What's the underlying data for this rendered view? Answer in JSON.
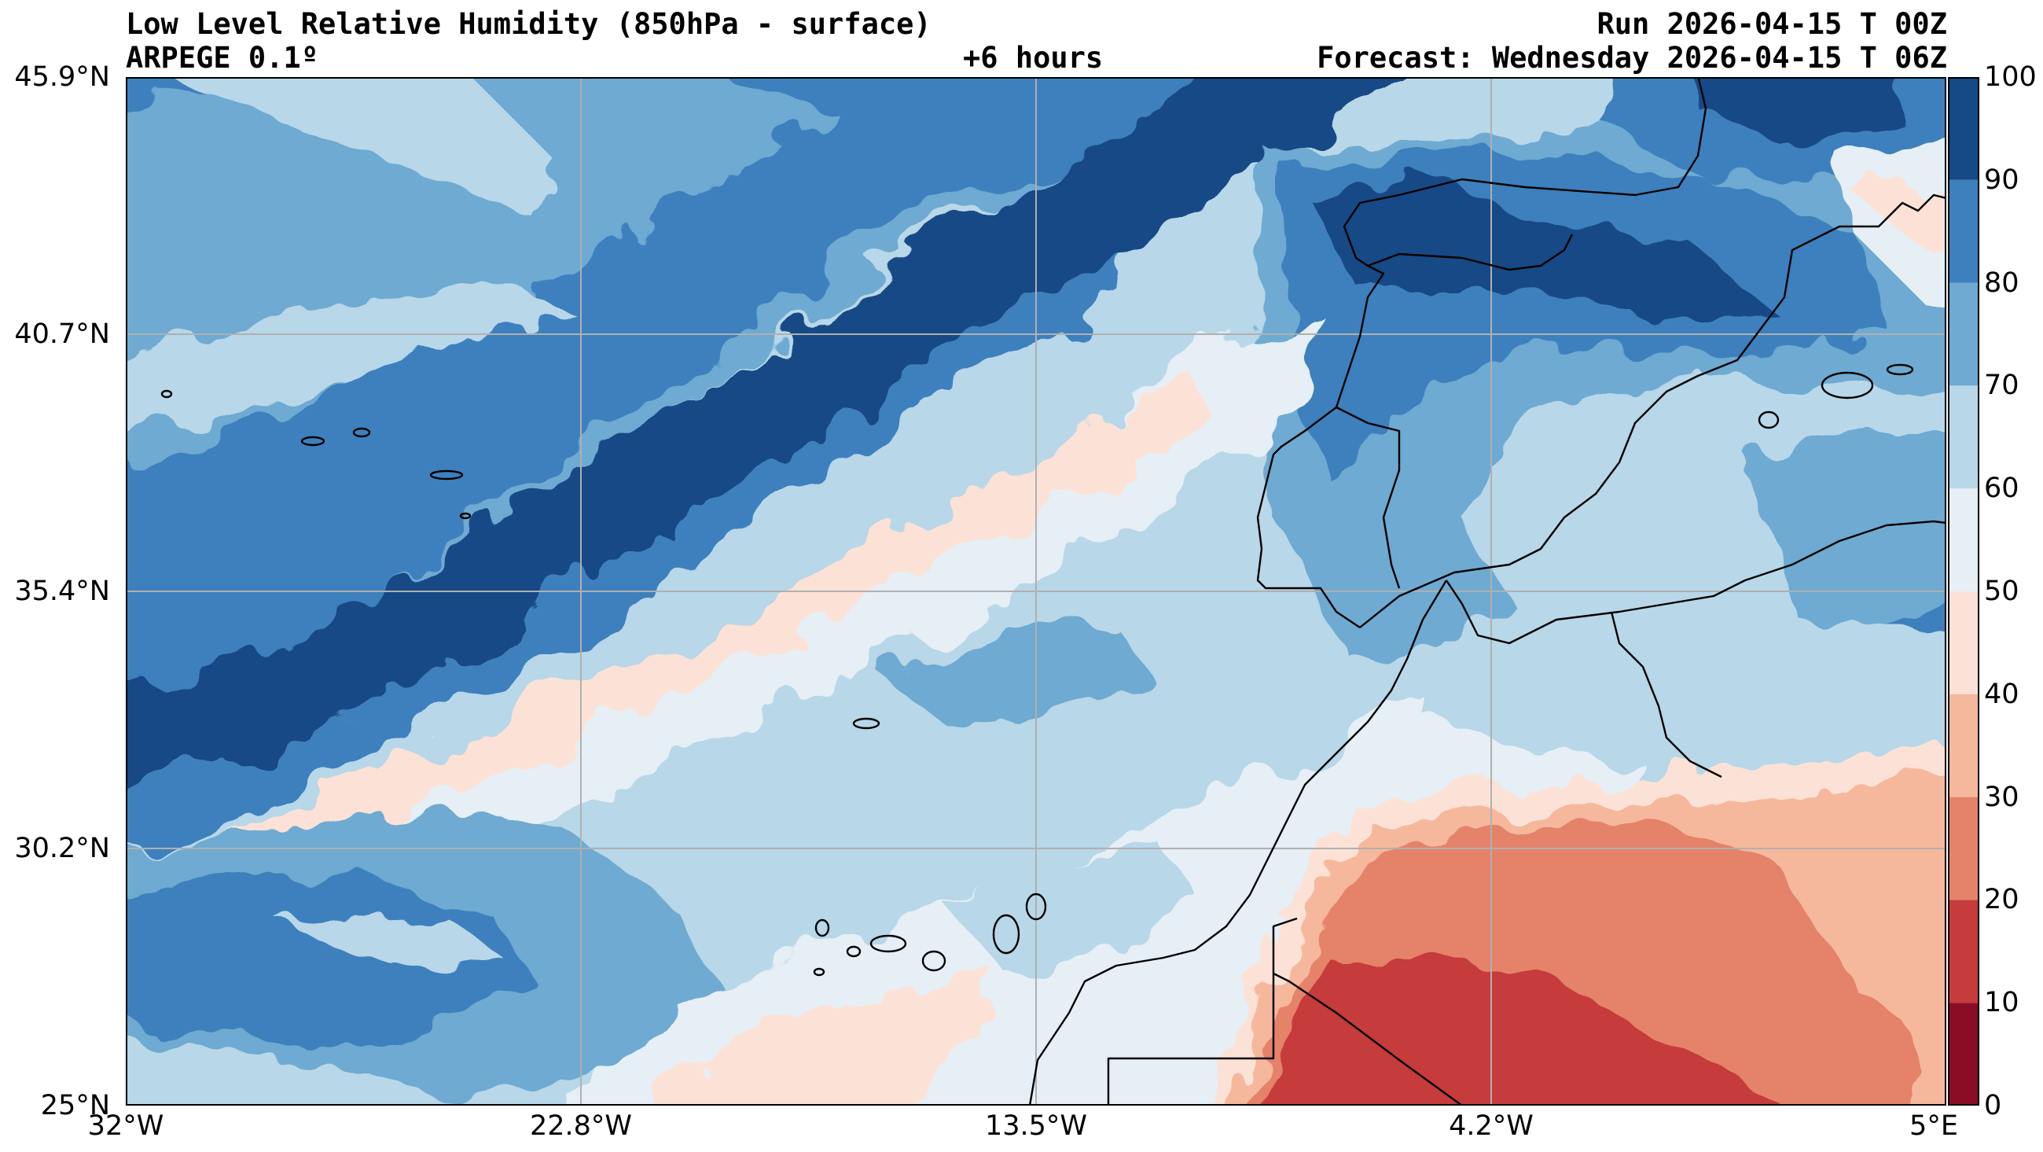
{
  "header": {
    "title": "Low Level Relative Humidity (850hPa - surface)",
    "model": "ARPEGE 0.1º",
    "lead_time": "+6 hours",
    "run": "Run 2026-04-15 T 00Z",
    "forecast": "Forecast: Wednesday 2026-04-15 T 06Z"
  },
  "map": {
    "lat_ticks": [
      "45.9°N",
      "40.7°N",
      "35.4°N",
      "30.2°N",
      "25°N"
    ],
    "lon_ticks": [
      "32°W",
      "22.8°W",
      "13.5°W",
      "4.2°W",
      "5°E"
    ],
    "lat_range": [
      25,
      45.9
    ],
    "lon_range": [
      -32,
      5
    ],
    "variable_range": [
      0,
      100
    ]
  },
  "colorbar": {
    "ticks": [
      "100",
      "90",
      "80",
      "70",
      "60",
      "50",
      "40",
      "30",
      "20",
      "10",
      "0"
    ],
    "levels": [
      0,
      10,
      20,
      30,
      40,
      50,
      60,
      70,
      80,
      90,
      100
    ],
    "colors": [
      "#8a0d25",
      "#c63b3b",
      "#e5826a",
      "#f6b89c",
      "#fce2d6",
      "#e5eff5",
      "#b8d7e8",
      "#6eaad1",
      "#3d80bd",
      "#144a85"
    ]
  }
}
